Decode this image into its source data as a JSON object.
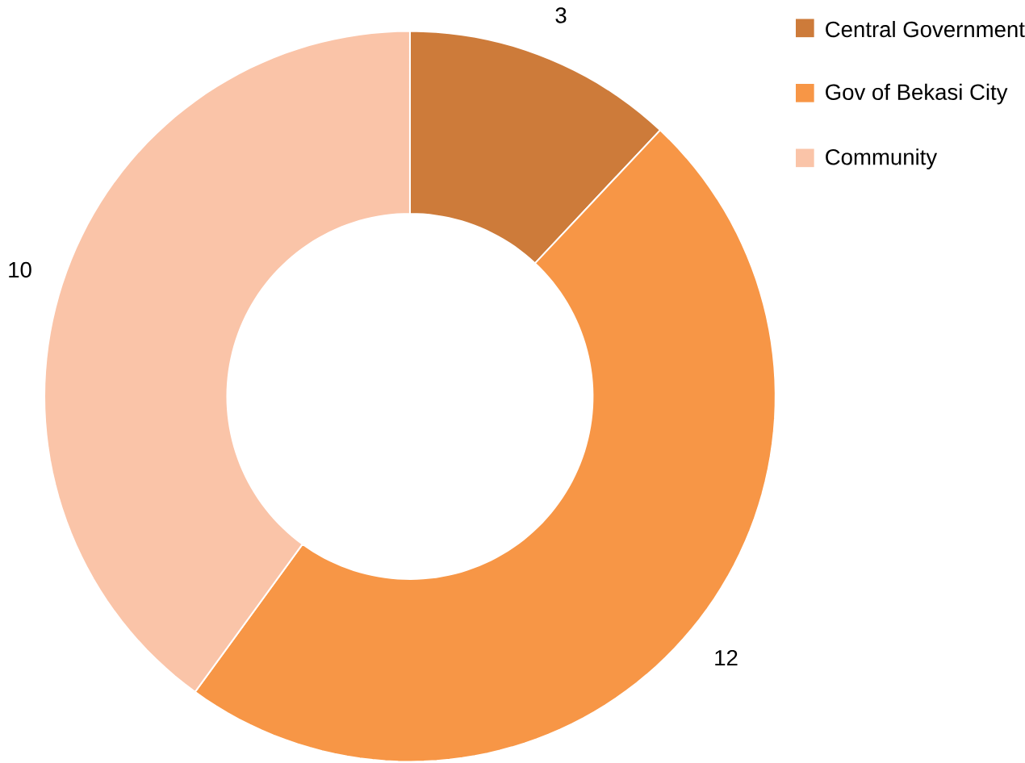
{
  "chart_data": {
    "type": "donut",
    "categories": [
      "Central Government",
      "Gov of Bekasi City",
      "Community"
    ],
    "values": [
      3,
      12,
      10
    ],
    "colors": [
      "#cd7b3a",
      "#f79646",
      "#fac4a8"
    ],
    "data_labels": true,
    "legend": "top right"
  }
}
